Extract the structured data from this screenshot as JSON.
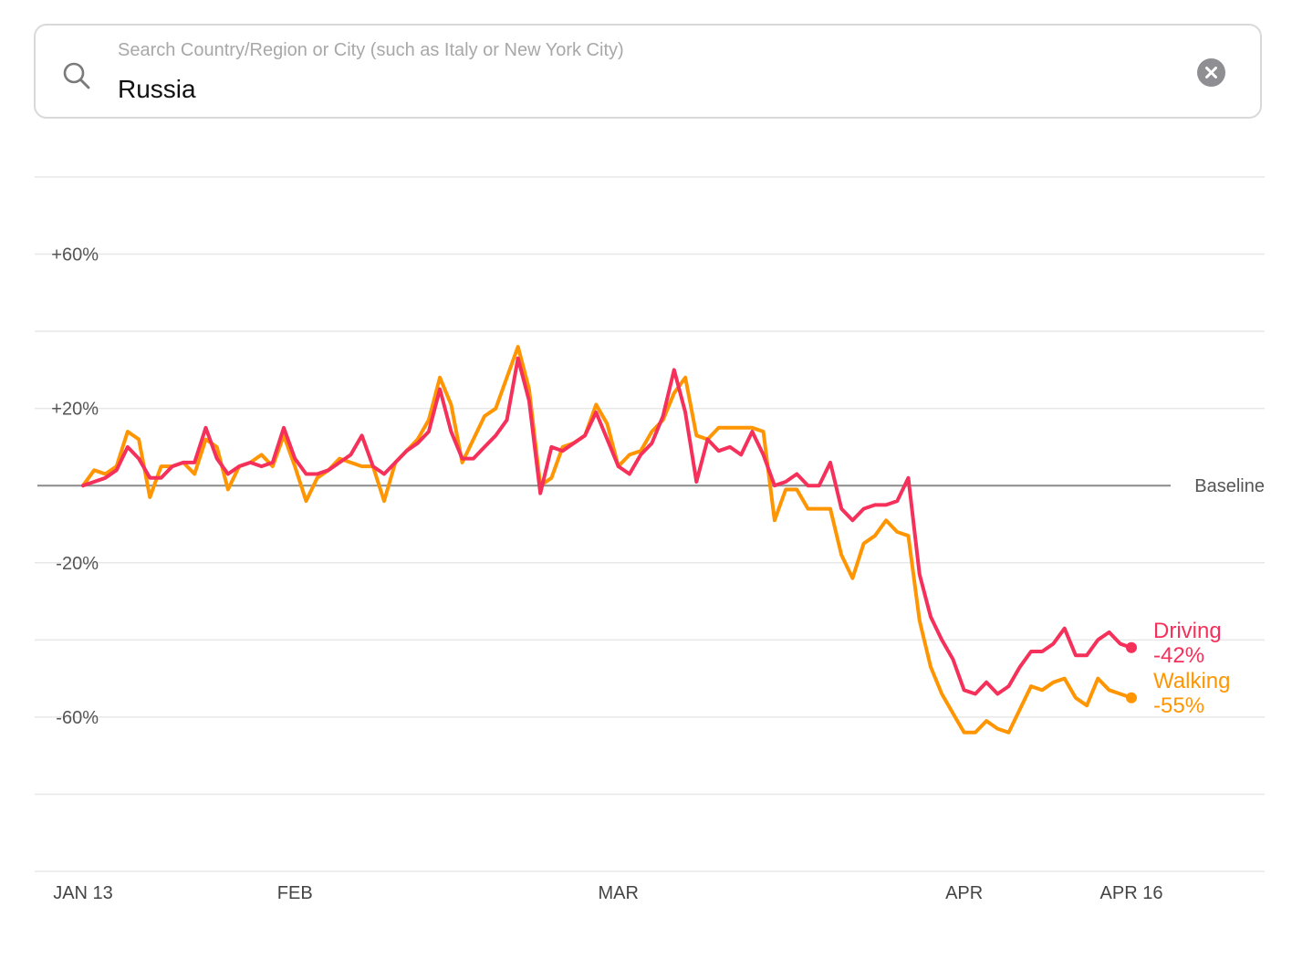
{
  "search": {
    "placeholder": "Search Country/Region or City (such as Italy or New York City)",
    "value": "Russia"
  },
  "chart_data": {
    "type": "line",
    "ylabel": "",
    "xlabel": "",
    "ylim": [
      -100,
      80
    ],
    "y_ticks": [
      {
        "value": 60,
        "label": "+60%"
      },
      {
        "value": 20,
        "label": "+20%"
      },
      {
        "value": -20,
        "label": "-20%"
      },
      {
        "value": -60,
        "label": "-60%"
      }
    ],
    "gridlines": [
      80,
      60,
      40,
      20,
      -20,
      -40,
      -60,
      -80,
      -100
    ],
    "baseline": {
      "value": 0,
      "label": "Baseline"
    },
    "x_range": [
      0,
      94
    ],
    "x_ticks": [
      {
        "value": 0,
        "label": "JAN 13"
      },
      {
        "value": 19,
        "label": "FEB"
      },
      {
        "value": 48,
        "label": "MAR"
      },
      {
        "value": 79,
        "label": "APR"
      },
      {
        "value": 94,
        "label": "APR 16"
      }
    ],
    "series": [
      {
        "name": "Driving",
        "color": "#f5305a",
        "end_label": "-42%",
        "values": [
          0,
          1,
          2,
          4,
          10,
          7,
          2,
          2,
          5,
          6,
          6,
          15,
          7,
          3,
          5,
          6,
          5,
          6,
          15,
          7,
          3,
          3,
          4,
          6,
          8,
          13,
          5,
          3,
          6,
          9,
          11,
          14,
          25,
          14,
          7,
          7,
          10,
          13,
          17,
          33,
          22,
          -2,
          10,
          9,
          11,
          13,
          19,
          12,
          5,
          3,
          8,
          11,
          18,
          30,
          19,
          1,
          12,
          9,
          10,
          8,
          14,
          8,
          0,
          1,
          3,
          0,
          0,
          6,
          -6,
          -9,
          -6,
          -5,
          -5,
          -4,
          2,
          -23,
          -34,
          -40,
          -45,
          -53,
          -54,
          -51,
          -54,
          -52,
          -47,
          -43,
          -43,
          -41,
          -37,
          -44,
          -44,
          -40,
          -38,
          -41,
          -42
        ]
      },
      {
        "name": "Walking",
        "color": "#ff9500",
        "end_label": "-55%",
        "values": [
          0,
          4,
          3,
          5,
          14,
          12,
          -3,
          5,
          5,
          6,
          3,
          12,
          10,
          -1,
          5,
          6,
          8,
          5,
          13,
          5,
          -4,
          2,
          4,
          7,
          6,
          5,
          5,
          -4,
          6,
          9,
          12,
          17,
          28,
          21,
          6,
          12,
          18,
          20,
          28,
          36,
          25,
          0,
          2,
          10,
          11,
          13,
          21,
          16,
          5,
          8,
          9,
          14,
          17,
          24,
          28,
          13,
          12,
          15,
          15,
          15,
          15,
          14,
          -9,
          -1,
          -1,
          -6,
          -6,
          -6,
          -18,
          -24,
          -15,
          -13,
          -9,
          -12,
          -13,
          -35,
          -47,
          -54,
          -59,
          -64,
          -64,
          -61,
          -63,
          -64,
          -58,
          -52,
          -53,
          -51,
          -50,
          -55,
          -57,
          -50,
          -53,
          -54,
          -55
        ]
      }
    ]
  }
}
